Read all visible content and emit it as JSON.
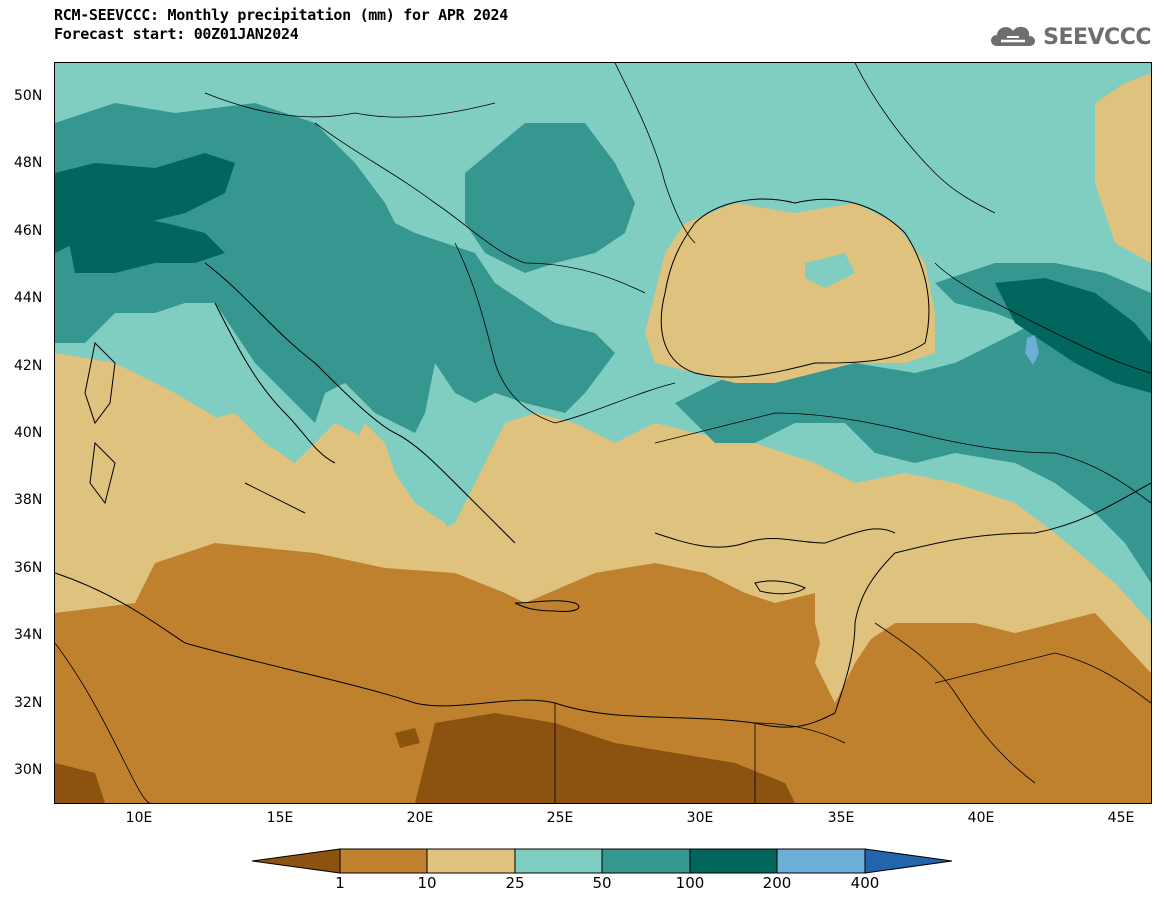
{
  "header": {
    "title_line1": "RCM-SEEVCCC: Monthly precipitation (mm) for APR 2024",
    "title_line2": "Forecast start: 00Z01JAN2024"
  },
  "logo": {
    "text": "SEEVCCC",
    "icon": "cloud-icon"
  },
  "map": {
    "lat_labels": [
      "50N",
      "48N",
      "46N",
      "44N",
      "42N",
      "40N",
      "38N",
      "36N",
      "34N",
      "32N",
      "30N"
    ],
    "lon_labels": [
      "10E",
      "15E",
      "20E",
      "25E",
      "30E",
      "35E",
      "40E",
      "45E"
    ]
  },
  "colorbar": {
    "labels": [
      "1",
      "10",
      "25",
      "50",
      "100",
      "200",
      "400"
    ],
    "colors": {
      "lt1": "#8c520f",
      "1-10": "#bf812d",
      "10-25": "#dfc27d",
      "25-50": "#80cdc1",
      "50-100": "#35978f",
      "100-200": "#01665e",
      "200-400": "#6baed6",
      "gt400": "#2166ac"
    }
  }
}
